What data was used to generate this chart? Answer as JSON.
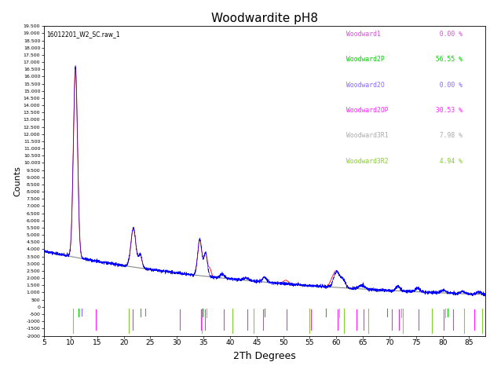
{
  "title": "Woodwardite pH8",
  "xlabel": "2Th Degrees",
  "ylabel": "Counts",
  "annotation": "16012201_W2_SC.raw_1",
  "xlim": [
    5,
    88
  ],
  "ylim": [
    -2000,
    19500
  ],
  "background_color": "#ffffff",
  "legend_entries": [
    {
      "label": "Woodward1",
      "value": "  0.00 %",
      "color": "#cc55cc"
    },
    {
      "label": "Woodward2P",
      "value": " 56.55 %",
      "color": "#00cc00"
    },
    {
      "label": "Woodward2O",
      "value": "  0.00 %",
      "color": "#8866ff"
    },
    {
      "label": "Woodward2OP",
      "value": " 30.53 %",
      "color": "#ff22ff"
    },
    {
      "label": "Woodward3R1",
      "value": "  7.98 %",
      "color": "#aaaaaa"
    },
    {
      "label": "Woodward3R2",
      "value": "  4.94 %",
      "color": "#88cc33"
    }
  ],
  "tick_data": [
    {
      "color": "#cc55cc",
      "positions": [
        11.5
      ],
      "y_top": -100,
      "y_bot": -600
    },
    {
      "color": "#00cc00",
      "positions": [
        11.5,
        23.2,
        34.9,
        46.5,
        58.1,
        69.5,
        80.9
      ],
      "y_top": -100,
      "y_bot": -650
    },
    {
      "color": "#8866ff",
      "positions": [
        12.0,
        24.0
      ],
      "y_top": -100,
      "y_bot": -600
    },
    {
      "color": "#ff22ff",
      "positions": [
        14.7,
        21.7,
        30.5,
        34.5,
        35.2,
        38.8,
        43.3,
        46.2,
        50.6,
        55.2,
        60.2,
        63.8,
        65.2,
        70.5,
        71.8,
        75.4,
        80.2,
        82.0,
        86.0
      ],
      "y_top": -150,
      "y_bot": -1600
    },
    {
      "color": "#aaaaaa",
      "positions": [
        35.6,
        60.5,
        72.2,
        80.5
      ],
      "y_top": -100,
      "y_bot": -700
    },
    {
      "color": "#88cc33",
      "positions": [
        10.5,
        21.0,
        34.7,
        40.5,
        44.5,
        55.0,
        61.5,
        66.0,
        72.5,
        78.0,
        84.0,
        87.5
      ],
      "y_top": -100,
      "y_bot": -1800
    }
  ]
}
